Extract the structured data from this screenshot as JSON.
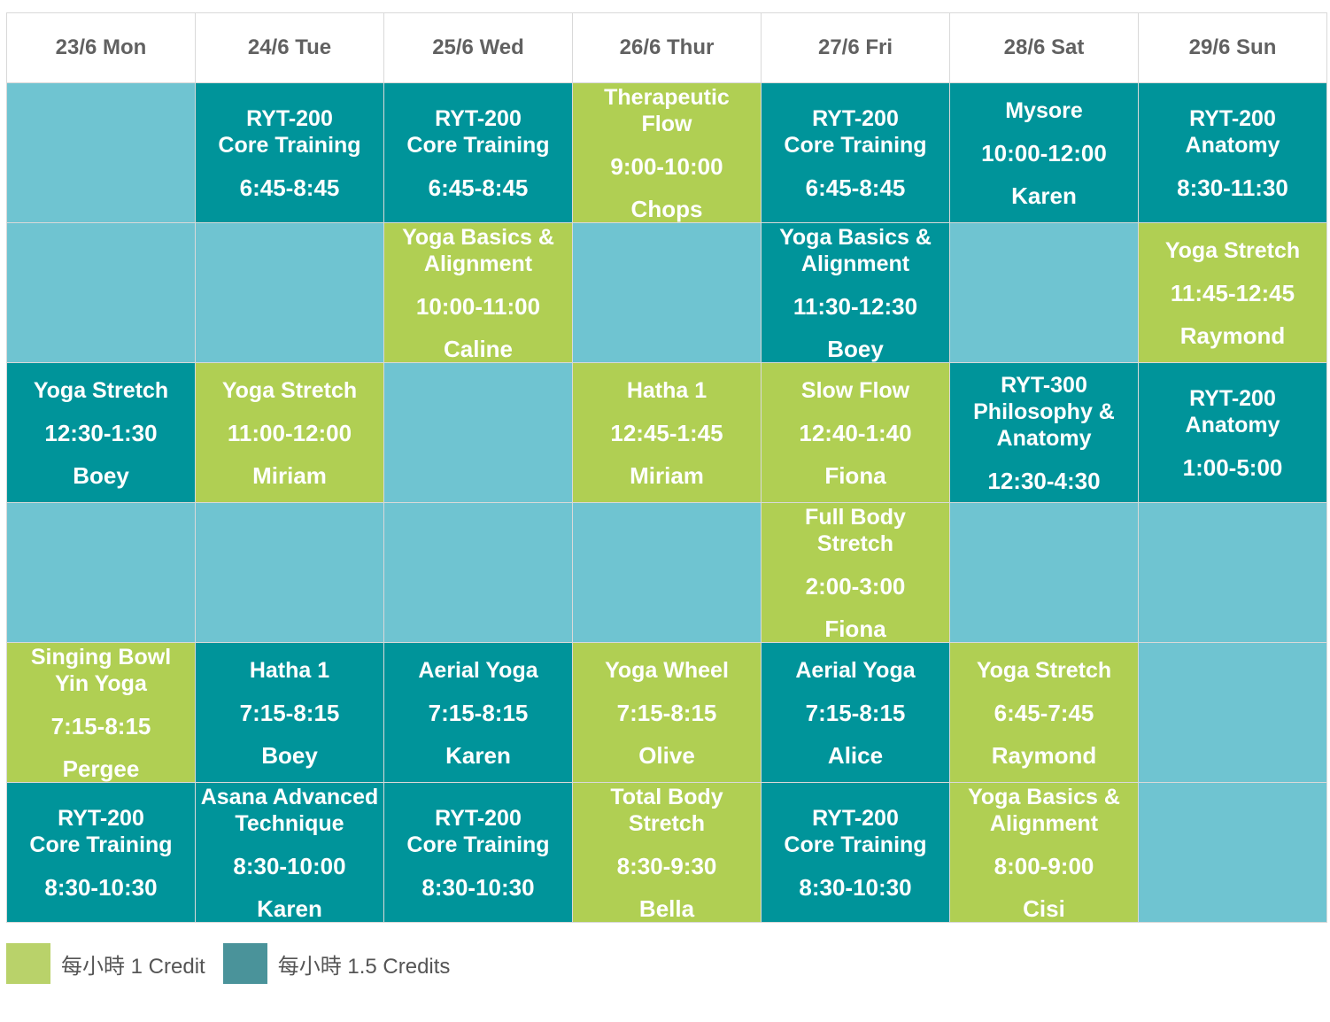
{
  "days": [
    "23/6 Mon",
    "24/6 Tue",
    "25/6 Wed",
    "26/6 Thur",
    "27/6 Fri",
    "28/6 Sat",
    "29/6 Sun"
  ],
  "colors": {
    "one_credit": "#b0cf53",
    "one_half_credits": "#00949a",
    "empty": "#6fc4d1"
  },
  "rows": [
    [
      null,
      {
        "title": "RYT-200\nCore Training",
        "time": "6:45-8:45",
        "teacher": "",
        "credit": "1.5"
      },
      {
        "title": "RYT-200\nCore Training",
        "time": "6:45-8:45",
        "teacher": "",
        "credit": "1.5"
      },
      {
        "title": "Therapeutic\nFlow",
        "time": "9:00-10:00",
        "teacher": "Chops",
        "credit": "1"
      },
      {
        "title": "RYT-200\nCore Training",
        "time": "6:45-8:45",
        "teacher": "",
        "credit": "1.5"
      },
      {
        "title": "Mysore",
        "time": "10:00-12:00",
        "teacher": "Karen",
        "credit": "1.5"
      },
      {
        "title": "RYT-200\nAnatomy",
        "time": "8:30-11:30",
        "teacher": "",
        "credit": "1.5"
      }
    ],
    [
      null,
      null,
      {
        "title": "Yoga Basics &\nAlignment",
        "time": "10:00-11:00",
        "teacher": "Caline",
        "credit": "1"
      },
      null,
      {
        "title": "Yoga Basics &\nAlignment",
        "time": "11:30-12:30",
        "teacher": "Boey",
        "credit": "1.5"
      },
      null,
      {
        "title": "Yoga Stretch",
        "time": "11:45-12:45",
        "teacher": "Raymond",
        "credit": "1"
      }
    ],
    [
      {
        "title": "Yoga Stretch",
        "time": "12:30-1:30",
        "teacher": "Boey",
        "credit": "1.5"
      },
      {
        "title": "Yoga Stretch",
        "time": "11:00-12:00",
        "teacher": "Miriam",
        "credit": "1"
      },
      null,
      {
        "title": "Hatha 1",
        "time": "12:45-1:45",
        "teacher": "Miriam",
        "credit": "1"
      },
      {
        "title": "Slow Flow",
        "time": "12:40-1:40",
        "teacher": "Fiona",
        "credit": "1"
      },
      {
        "title": "RYT-300\nPhilosophy &\nAnatomy",
        "time": "12:30-4:30",
        "teacher": "",
        "credit": "1.5"
      },
      {
        "title": "RYT-200\nAnatomy",
        "time": "1:00-5:00",
        "teacher": "",
        "credit": "1.5"
      }
    ],
    [
      null,
      null,
      null,
      null,
      {
        "title": "Full Body\nStretch",
        "time": "2:00-3:00",
        "teacher": "Fiona",
        "credit": "1"
      },
      null,
      null
    ],
    [
      {
        "title": "Singing Bowl\nYin Yoga",
        "time": "7:15-8:15",
        "teacher": "Pergee",
        "credit": "1"
      },
      {
        "title": "Hatha 1",
        "time": "7:15-8:15",
        "teacher": "Boey",
        "credit": "1.5"
      },
      {
        "title": "Aerial Yoga",
        "time": "7:15-8:15",
        "teacher": "Karen",
        "credit": "1.5"
      },
      {
        "title": "Yoga Wheel",
        "time": "7:15-8:15",
        "teacher": "Olive",
        "credit": "1"
      },
      {
        "title": "Aerial Yoga",
        "time": "7:15-8:15",
        "teacher": "Alice",
        "credit": "1.5"
      },
      {
        "title": "Yoga Stretch",
        "time": "6:45-7:45",
        "teacher": "Raymond",
        "credit": "1"
      },
      null
    ],
    [
      {
        "title": "RYT-200\nCore Training",
        "time": "8:30-10:30",
        "teacher": "",
        "credit": "1.5"
      },
      {
        "title": "Asana Advanced\nTechnique",
        "time": "8:30-10:00",
        "teacher": "Karen",
        "credit": "1.5"
      },
      {
        "title": "RYT-200\nCore Training",
        "time": "8:30-10:30",
        "teacher": "",
        "credit": "1.5"
      },
      {
        "title": "Total Body\nStretch",
        "time": "8:30-9:30",
        "teacher": "Bella",
        "credit": "1"
      },
      {
        "title": "RYT-200\nCore Training",
        "time": "8:30-10:30",
        "teacher": "",
        "credit": "1.5"
      },
      {
        "title": "Yoga Basics &\nAlignment",
        "time": "8:00-9:00",
        "teacher": "Cisi",
        "credit": "1"
      },
      null
    ]
  ],
  "legend": [
    {
      "label": "每小時 1 Credit",
      "color": "#b9d26a"
    },
    {
      "label": "每小時 1.5 Credits",
      "color": "#4a939a"
    }
  ]
}
